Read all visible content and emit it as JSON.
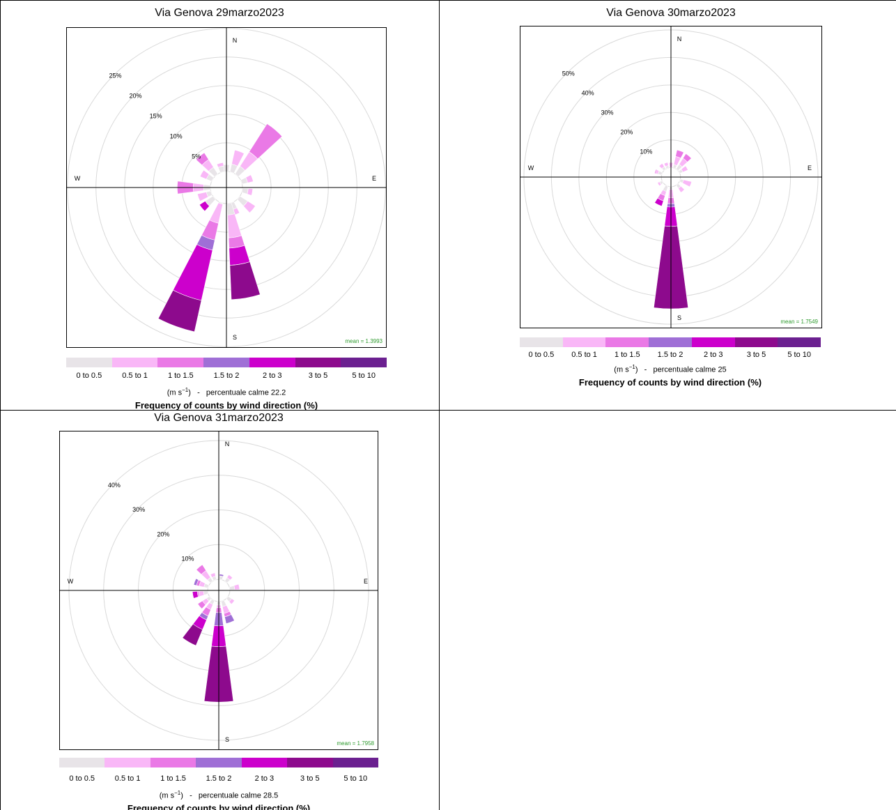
{
  "legend_labels": [
    "0 to 0.5",
    "0.5 to 1",
    "1 to 1.5",
    "1.5 to 2",
    "2 to 3",
    "3 to 5",
    "5 to 10"
  ],
  "legend_colors": [
    "#e8e4e8",
    "#f9b7f7",
    "#ea79e6",
    "#9f6fd6",
    "#cc00cc",
    "#8d0a8d",
    "#6b2090"
  ],
  "unit_label": "m s",
  "unit_exp": "−1",
  "caption": "Frequency of counts by wind direction (%)",
  "compass": {
    "n": "N",
    "e": "E",
    "s": "S",
    "w": "W"
  },
  "chart_data": [
    {
      "type": "windrose",
      "title": "Via Genova 29marzo2023",
      "calm_label": "percentuale calme 22.2",
      "mean_label": "mean = 1.3993",
      "ring_labels": [
        "5%",
        "10%",
        "15%",
        "20%",
        "25%"
      ],
      "ring_values": [
        5,
        10,
        15,
        20,
        25
      ],
      "r_max": 28,
      "calm_radius": 2.8,
      "wedges": [
        {
          "dir": 0,
          "bands": [
            1.2
          ]
        },
        {
          "dir": 20,
          "bands": [
            1.4,
            2.5
          ]
        },
        {
          "dir": 40,
          "bands": [
            1.6,
            3.0,
            5.8
          ]
        },
        {
          "dir": 70,
          "bands": [
            1.0,
            1.0
          ]
        },
        {
          "dir": 100,
          "bands": [
            1.0,
            0.8
          ]
        },
        {
          "dir": 130,
          "bands": [
            1.6,
            1.6
          ]
        },
        {
          "dir": 160,
          "bands": [
            1.2,
            1.0
          ]
        },
        {
          "dir": 170,
          "bands": [
            2.0,
            4.0,
            1.8,
            0,
            3.0,
            6.0
          ]
        },
        {
          "dir": 200,
          "bands": [
            0.2,
            3.4,
            3.0,
            1.8,
            9.0,
            5.6
          ]
        },
        {
          "dir": 230,
          "bands": [
            1.6,
            0,
            0,
            0,
            1.2
          ]
        },
        {
          "dir": 250,
          "bands": [
            0.8,
            1.6
          ]
        },
        {
          "dir": 270,
          "bands": [
            1.2,
            1.8,
            2.8
          ]
        },
        {
          "dir": 300,
          "bands": [
            1.0,
            1.2
          ]
        },
        {
          "dir": 320,
          "bands": [
            1.4,
            1.6,
            1.4
          ]
        },
        {
          "dir": 345,
          "bands": [
            1.0,
            0.6
          ]
        }
      ]
    },
    {
      "type": "windrose",
      "title": "Via Genova 30marzo2023",
      "calm_label": "percentuale calme 25",
      "mean_label": "mean = 1.7549",
      "ring_labels": [
        "10%",
        "20%",
        "30%",
        "40%",
        "50%"
      ],
      "ring_values": [
        10,
        20,
        30,
        40,
        50
      ],
      "r_max": 55,
      "calm_radius": 3.5,
      "wedges": [
        {
          "dir": 0,
          "bands": [
            0,
            1.8
          ]
        },
        {
          "dir": 20,
          "bands": [
            1.2,
            3.0,
            2.4
          ]
        },
        {
          "dir": 40,
          "bands": [
            2.0,
            2.6,
            2.0
          ]
        },
        {
          "dir": 60,
          "bands": [
            1.2,
            2.0
          ]
        },
        {
          "dir": 110,
          "bands": [
            1.2,
            3.0
          ]
        },
        {
          "dir": 140,
          "bands": [
            1.4,
            1.8
          ]
        },
        {
          "dir": 180,
          "bands": [
            1.0,
            3.0,
            2.2,
            1.2,
            7.0,
            30.0
          ]
        },
        {
          "dir": 205,
          "bands": [
            2.0,
            1.6,
            2.0,
            0,
            2.0
          ]
        },
        {
          "dir": 240,
          "bands": [
            1.0,
            0.8
          ]
        },
        {
          "dir": 290,
          "bands": [
            1.4,
            0.8,
            0.4
          ]
        },
        {
          "dir": 320,
          "bands": [
            1.0,
            1.4
          ]
        },
        {
          "dir": 340,
          "bands": [
            0.8,
            1.2
          ]
        }
      ]
    },
    {
      "type": "windrose",
      "title": "Via Genova 31marzo2023",
      "calm_label": "percentuale calme 28.5",
      "mean_label": "mean = 1.7958",
      "ring_labels": [
        "10%",
        "20%",
        "30%",
        "40%"
      ],
      "ring_values": [
        10,
        20,
        30,
        40
      ],
      "r_max": 46,
      "calm_radius": 3.2,
      "wedges": [
        {
          "dir": 10,
          "bands": [
            1.0,
            0,
            0,
            0.5
          ]
        },
        {
          "dir": 40,
          "bands": [
            1.2,
            1.0
          ]
        },
        {
          "dir": 80,
          "bands": [
            1.4,
            1.4
          ]
        },
        {
          "dir": 130,
          "bands": [
            1.2,
            1.0
          ]
        },
        {
          "dir": 160,
          "bands": [
            1.6,
            2.0,
            1.0,
            2.0
          ]
        },
        {
          "dir": 180,
          "bands": [
            1.0,
            0.8,
            1.4,
            3.8,
            6.0,
            16.0
          ]
        },
        {
          "dir": 210,
          "bands": [
            1.2,
            1.6,
            2.0,
            1.2,
            3.0,
            5.0
          ]
        },
        {
          "dir": 230,
          "bands": [
            1.0,
            1.4,
            1.6
          ]
        },
        {
          "dir": 260,
          "bands": [
            1.2,
            1.4,
            0.4,
            0,
            1.4
          ]
        },
        {
          "dir": 290,
          "bands": [
            1.2,
            1.4,
            0.8,
            0.8
          ]
        },
        {
          "dir": 320,
          "bands": [
            1.2,
            2.4,
            2.0
          ]
        },
        {
          "dir": 340,
          "bands": [
            1.0,
            1.0
          ]
        }
      ]
    }
  ]
}
